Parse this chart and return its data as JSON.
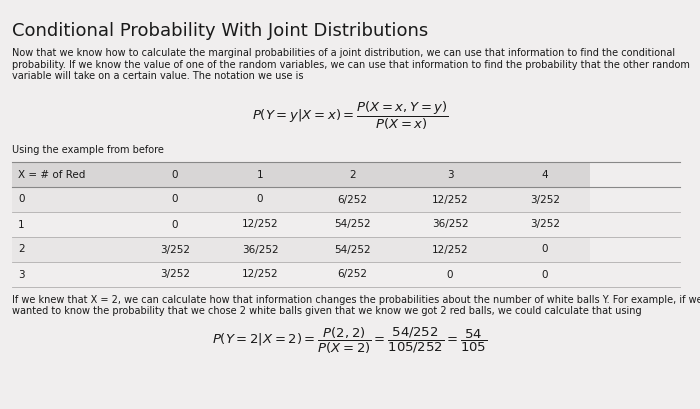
{
  "title": "Conditional Probability With Joint Distributions",
  "bg_color": "#f0eeee",
  "text_color": "#1a1a1a",
  "para1_lines": [
    "Now that we know how to calculate the marginal probabilities of a joint distribution, we can use that information to find the conditional",
    "probability. If we know the value of one of the random variables, we can use that information to find the probability that the other random",
    "variable will take on a certain value. The notation we use is"
  ],
  "formula_main": "$P(Y = y|X = x) = \\dfrac{P(X = x, Y = y)}{P(X = x)}$",
  "using_text": "Using the example from before",
  "table_header": [
    "X = # of Red",
    "0",
    "1",
    "2",
    "3",
    "4"
  ],
  "table_rows": [
    [
      "0",
      "0",
      "0",
      "6/252",
      "12/252",
      "3/252"
    ],
    [
      "1",
      "0",
      "12/252",
      "54/252",
      "36/252",
      "3/252"
    ],
    [
      "2",
      "3/252",
      "36/252",
      "54/252",
      "12/252",
      "0"
    ],
    [
      "3",
      "3/252",
      "12/252",
      "6/252",
      "0",
      "0"
    ]
  ],
  "para2_lines": [
    "If we knew that X = 2, we can calculate how that information changes the probabilities about the number of white balls Y. For example, if we",
    "wanted to know the probability that we chose 2 white balls given that we know we got 2 red balls, we could calculate that using"
  ],
  "formula_bottom": "$P(Y = 2|X = 2) = \\dfrac{P(2,2)}{P(X = 2)} = \\dfrac{54/252}{105/252} = \\dfrac{54}{105}$",
  "header_bg": "#d8d6d6",
  "row_bg_alt": "#e8e6e6",
  "row_bg_white": "#f0eeee",
  "table_line_color": "#b0aeae",
  "font_size_title": 13,
  "font_size_body": 7.0,
  "font_size_table": 7.5,
  "font_size_formula": 9.5
}
